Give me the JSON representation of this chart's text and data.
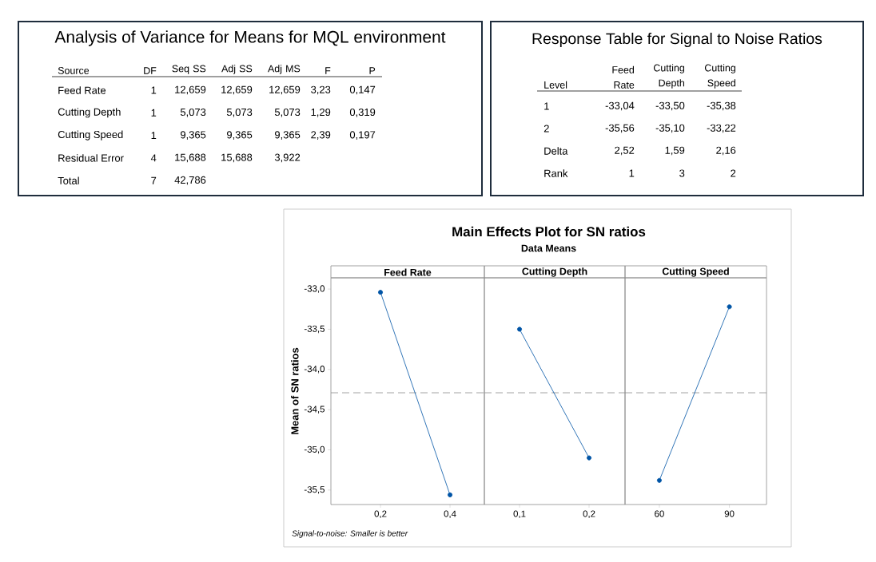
{
  "chart_data": [
    {
      "type": "other",
      "title": "Analysis of Variance for Means for MQL environment",
      "categories": [
        "Source",
        "DF",
        "Seq SS",
        "Adj SS",
        "Adj MS",
        "F",
        "P"
      ],
      "cell_labels": [
        [
          "Feed Rate",
          "1",
          "12,659",
          "12,659",
          "12,659",
          "3,23",
          "0,147"
        ],
        [
          "Cutting Depth",
          "1",
          "5,073",
          "5,073",
          "5,073",
          "1,29",
          "0,319"
        ],
        [
          "Cutting Speed",
          "1",
          "9,365",
          "9,365",
          "9,365",
          "2,39",
          "0,197"
        ],
        [
          "Residual Error",
          "4",
          "15,688",
          "15,688",
          "3,922",
          null,
          null
        ],
        [
          "Total",
          "7",
          "42,786",
          null,
          null,
          null,
          null
        ]
      ]
    },
    {
      "type": "other",
      "title": "Response Table for Signal to Noise Ratios",
      "categories": [
        "Level",
        "Feed Rate",
        "Cutting Depth",
        "Cutting Speed"
      ],
      "cell_labels": [
        [
          "1",
          "-33,04",
          "-33,50",
          "-35,38"
        ],
        [
          "2",
          "-35,56",
          "-35,10",
          "-33,22"
        ],
        [
          "Delta",
          "2,52",
          "1,59",
          "2,16"
        ],
        [
          "Rank",
          "1",
          "3",
          "2"
        ]
      ]
    },
    {
      "type": "other",
      "title": "Main Effects Plot for SN ratios",
      "subtitle": "Data Means",
      "annotations": [
        "Signal-to-noise: Smaller is better"
      ]
    },
    {
      "type": "line",
      "title": "Feed Rate",
      "ylabel": "Mean of SN ratios",
      "categories": [
        "0,2",
        "0,4"
      ],
      "values": [
        -33.04,
        -35.56
      ],
      "color": "#0054a6",
      "marker": "circle",
      "line_style": "solid",
      "ylim": [
        -35.68,
        -32.86
      ],
      "yticks": [
        {
          "value": -33.0,
          "label": "-33,0"
        },
        {
          "value": -33.5,
          "label": "-33,5"
        },
        {
          "value": -34.0,
          "label": "-34,0"
        },
        {
          "value": -34.5,
          "label": "-34,5"
        },
        {
          "value": -35.0,
          "label": "-35,0"
        },
        {
          "value": -35.5,
          "label": "-35,5"
        }
      ],
      "ref_lines": [
        {
          "axis": "y",
          "value": -34.29,
          "color": "#8c8c8c",
          "line_style": "dashed"
        }
      ]
    },
    {
      "type": "line",
      "title": "Cutting Depth",
      "categories": [
        "0,1",
        "0,2"
      ],
      "values": [
        -33.5,
        -35.1
      ],
      "color": "#0054a6",
      "marker": "circle",
      "line_style": "solid",
      "ylim": [
        -35.68,
        -32.86
      ],
      "tick_labels": "x",
      "ref_lines": [
        {
          "axis": "y",
          "value": -34.29,
          "color": "#8c8c8c",
          "line_style": "dashed"
        }
      ]
    },
    {
      "type": "line",
      "title": "Cutting Speed",
      "categories": [
        "60",
        "90"
      ],
      "values": [
        -35.38,
        -33.22
      ],
      "color": "#0054a6",
      "marker": "circle",
      "line_style": "solid",
      "ylim": [
        -35.68,
        -32.86
      ],
      "tick_labels": "x",
      "ref_lines": [
        {
          "axis": "y",
          "value": -34.29,
          "color": "#8c8c8c",
          "line_style": "dashed"
        }
      ]
    }
  ]
}
